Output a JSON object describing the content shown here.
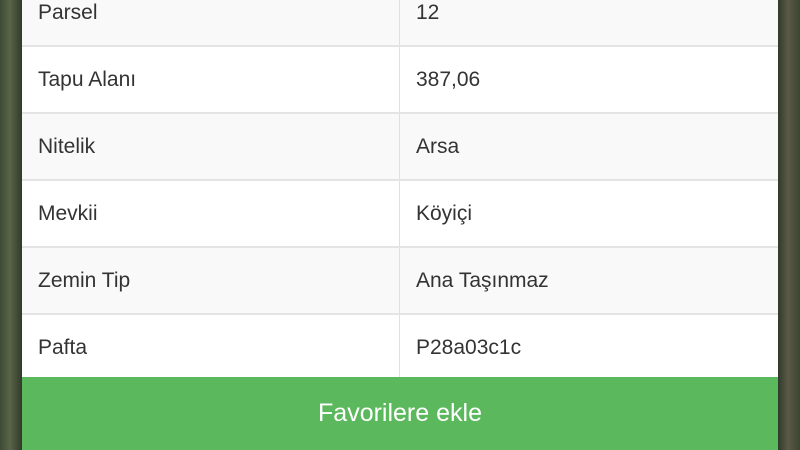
{
  "rows": [
    {
      "label": "Parsel",
      "value": "12"
    },
    {
      "label": "Tapu Alanı",
      "value": "387,06"
    },
    {
      "label": "Nitelik",
      "value": "Arsa"
    },
    {
      "label": "Mevkii",
      "value": "Köyiçi"
    },
    {
      "label": "Zemin Tip",
      "value": "Ana Taşınmaz"
    },
    {
      "label": "Pafta",
      "value": "P28a03c1c"
    }
  ],
  "button": {
    "label": "Favorilere ekle",
    "color": "#5cb85c"
  }
}
